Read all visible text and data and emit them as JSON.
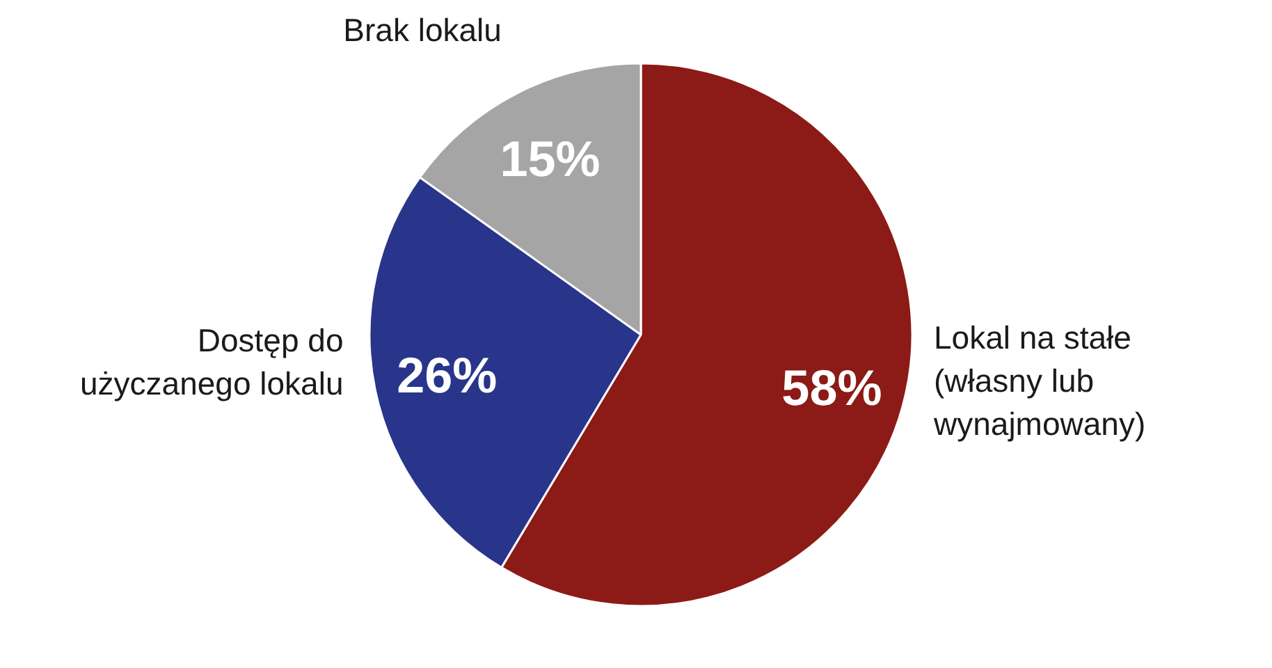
{
  "chart_data": {
    "type": "pie",
    "categories": [
      "Lokal na stałe (własny lub wynajmowany)",
      "Dostęp do użyczanego lokalu",
      "Brak lokalu"
    ],
    "values": [
      58,
      26,
      15
    ],
    "colors": [
      "#8c1a16",
      "#28358b",
      "#a5a5a5"
    ],
    "value_labels": [
      "58%",
      "26%",
      "15%"
    ]
  }
}
